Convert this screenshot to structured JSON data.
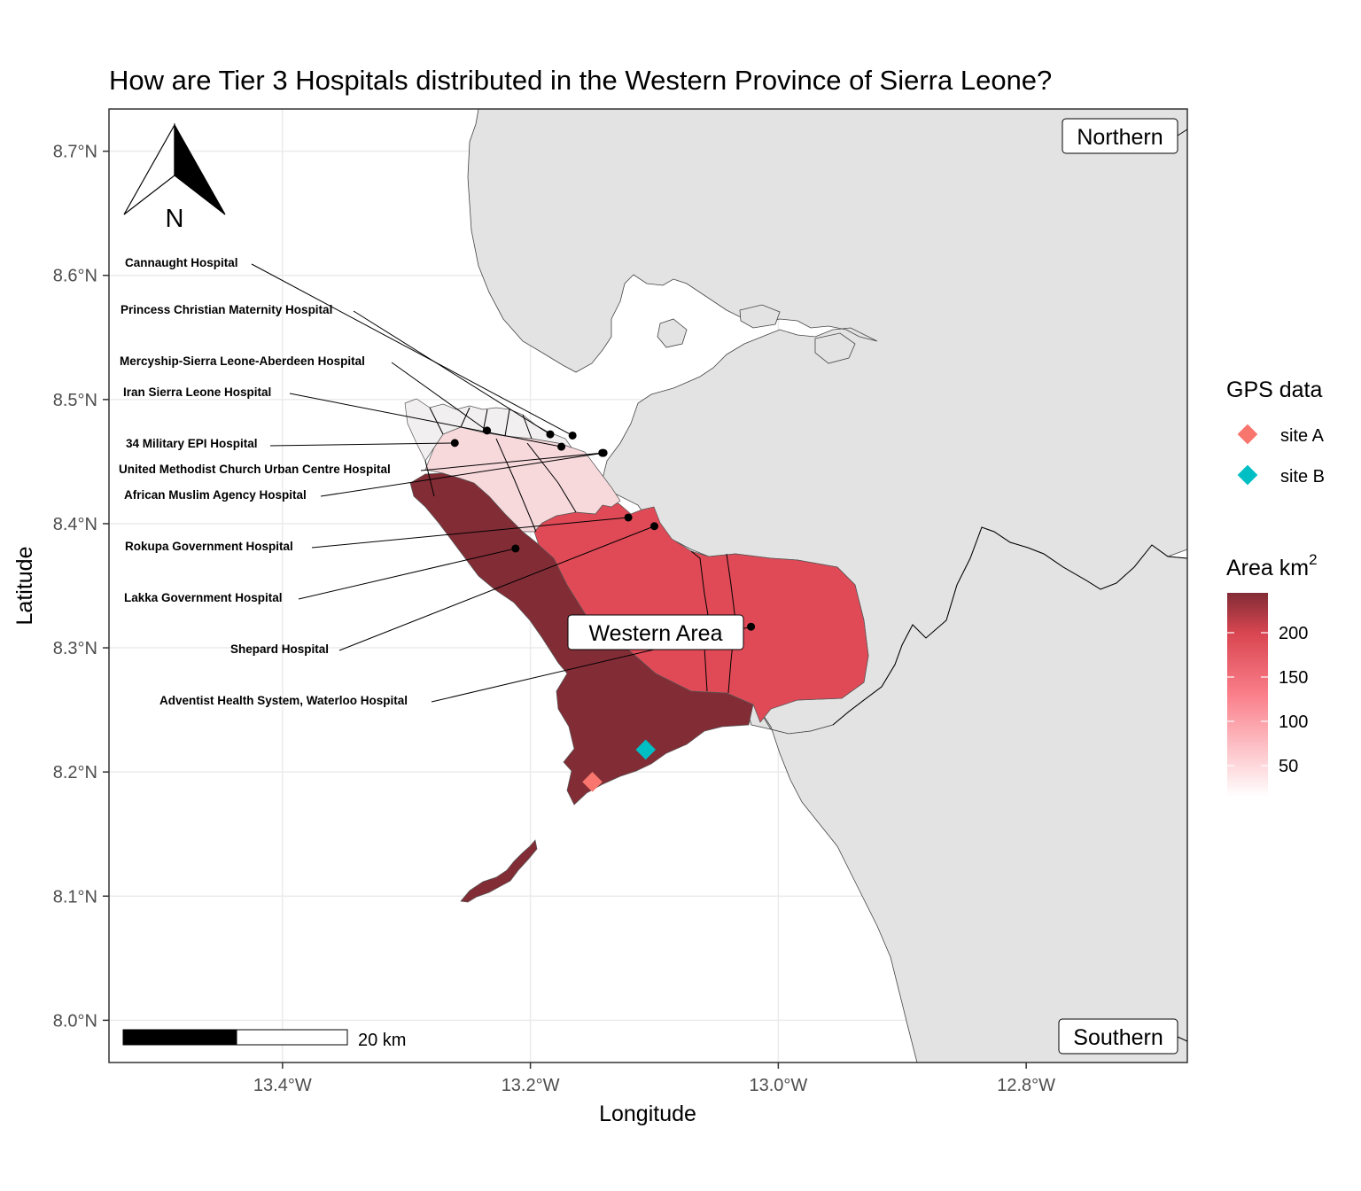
{
  "title": "How are Tier 3 Hospitals distributed in the Western Province of Sierra Leone?",
  "x_axis": {
    "title": "Longitude",
    "ticks": [
      {
        "value": -13.4,
        "label": "13.4°W"
      },
      {
        "value": -13.2,
        "label": "13.2°W"
      },
      {
        "value": -13.0,
        "label": "13.0°W"
      },
      {
        "value": -12.8,
        "label": "12.8°W"
      }
    ]
  },
  "y_axis": {
    "title": "Latitude",
    "ticks": [
      {
        "value": 8.7,
        "label": "8.7°N"
      },
      {
        "value": 8.6,
        "label": "8.6°N"
      },
      {
        "value": 8.5,
        "label": "8.5°N"
      },
      {
        "value": 8.4,
        "label": "8.4°N"
      },
      {
        "value": 8.3,
        "label": "8.3°N"
      },
      {
        "value": 8.2,
        "label": "8.2°N"
      },
      {
        "value": 8.1,
        "label": "8.1°N"
      },
      {
        "value": 8.0,
        "label": "8.0°N"
      }
    ]
  },
  "map_data": {
    "extent": {
      "lon": [
        -13.54,
        -12.67
      ],
      "lat": [
        7.966,
        8.734
      ]
    },
    "regions": [
      {
        "label": "Northern"
      },
      {
        "label": "Western Area"
      },
      {
        "label": "Southern"
      }
    ],
    "hospitals": [
      {
        "name": "Cannaught Hospital",
        "lon": -13.166,
        "lat": 8.471
      },
      {
        "name": "Princess Christian Maternity Hospital",
        "lon": -13.184,
        "lat": 8.472
      },
      {
        "name": "Mercyship-Sierra Leone-Aberdeen Hospital",
        "lon": -13.235,
        "lat": 8.475
      },
      {
        "name": "Iran Sierra Leone Hospital",
        "lon": -13.175,
        "lat": 8.462
      },
      {
        "name": "34 Military EPI Hospital",
        "lon": -13.261,
        "lat": 8.465
      },
      {
        "name": "United Methodist Church Urban Centre Hospital",
        "lon": -13.142,
        "lat": 8.457
      },
      {
        "name": "African Muslim Agency Hospital",
        "lon": -13.141,
        "lat": 8.457
      },
      {
        "name": "Rokupa Government Hospital",
        "lon": -13.121,
        "lat": 8.405
      },
      {
        "name": "Lakka Government Hospital",
        "lon": -13.212,
        "lat": 8.38
      },
      {
        "name": "Shepard Hospital",
        "lon": -13.1,
        "lat": 8.398
      },
      {
        "name": "Adventist Health System, Waterloo Hospital",
        "lon": -13.022,
        "lat": 8.317
      }
    ],
    "gps_sites": [
      {
        "name": "site A",
        "lon": -13.15,
        "lat": 8.192,
        "color": "#F8766D"
      },
      {
        "name": "site B",
        "lon": -13.107,
        "lat": 8.218,
        "color": "#00BFC4"
      }
    ],
    "area_districts": [
      {
        "area_km2": 245,
        "color": "#822c35"
      },
      {
        "area_km2": 170,
        "color": "#e04a57"
      },
      {
        "area_km2": 30,
        "color": "#f7d9dc"
      },
      {
        "area_km2": 15,
        "color": "#f1eff0"
      }
    ],
    "scale_bar": {
      "label": "20 km"
    },
    "north_arrow": {
      "label": "N"
    }
  },
  "legend": {
    "gps": {
      "title": "GPS data"
    },
    "area": {
      "title": "Area km",
      "title_superscript": "2",
      "range": [
        15,
        245
      ],
      "low_color": "#ffffff",
      "mid_color": "#fa7f8a",
      "high_color": "#822c35",
      "ticks": [
        {
          "value": 200,
          "label": "200"
        },
        {
          "value": 150,
          "label": "150"
        },
        {
          "value": 100,
          "label": "100"
        },
        {
          "value": 50,
          "label": "50"
        }
      ]
    }
  }
}
